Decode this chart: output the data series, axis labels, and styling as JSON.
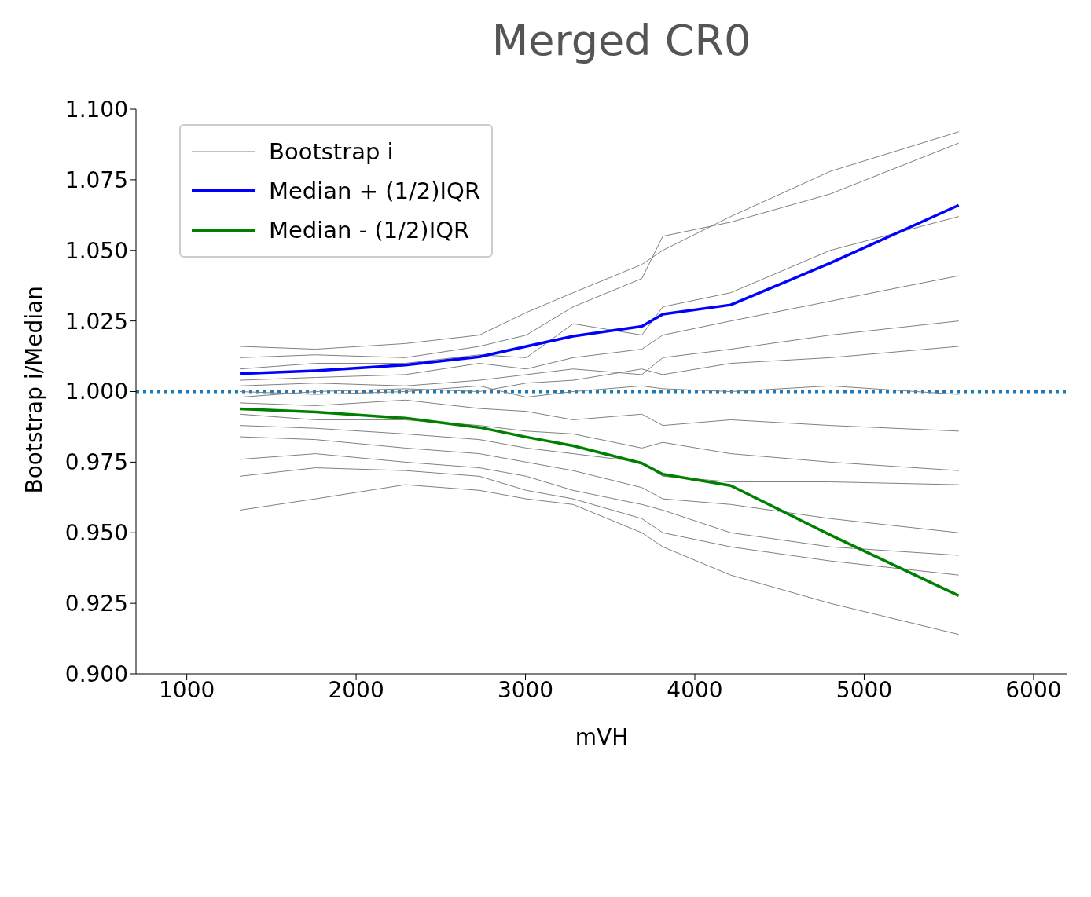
{
  "chart_data": {
    "type": "line",
    "title": "Merged CR0",
    "xlabel": "mVH",
    "ylabel": "Bootstrap i/Median",
    "x": [
      1313,
      1760,
      2290,
      2728,
      3005,
      3281,
      3687,
      3811,
      4212,
      4800,
      5558
    ],
    "xlim": [
      700,
      6200
    ],
    "xticks": [
      1000,
      2000,
      3000,
      4000,
      5000,
      6000
    ],
    "ylim": [
      0.9,
      1.1
    ],
    "yticks": [
      {
        "value": 0.9,
        "label": "0.900"
      },
      {
        "value": 0.925,
        "label": "0.925"
      },
      {
        "value": 0.95,
        "label": "0.950"
      },
      {
        "value": 0.975,
        "label": "0.975"
      },
      {
        "value": 1.0,
        "label": "1.000"
      },
      {
        "value": 1.025,
        "label": "1.025"
      },
      {
        "value": 1.05,
        "label": "1.050"
      },
      {
        "value": 1.075,
        "label": "1.075"
      },
      {
        "value": 1.1,
        "label": "1.100"
      }
    ],
    "legend": "top left",
    "series": [
      {
        "name": "Bootstrap i",
        "color": "#808080",
        "values": [
          1.016,
          1.015,
          1.017,
          1.02,
          1.028,
          1.035,
          1.045,
          1.05,
          1.062,
          1.078,
          1.092
        ]
      },
      {
        "color": "#808080",
        "values": [
          1.012,
          1.013,
          1.012,
          1.016,
          1.02,
          1.03,
          1.04,
          1.055,
          1.06,
          1.07,
          1.088
        ]
      },
      {
        "color": "#808080",
        "values": [
          1.008,
          1.01,
          1.01,
          1.013,
          1.012,
          1.024,
          1.02,
          1.03,
          1.035,
          1.05,
          1.062
        ]
      },
      {
        "color": "#808080",
        "values": [
          1.004,
          1.005,
          1.006,
          1.01,
          1.008,
          1.012,
          1.015,
          1.02,
          1.025,
          1.032,
          1.041
        ]
      },
      {
        "color": "#808080",
        "values": [
          1.002,
          1.003,
          1.002,
          1.004,
          1.006,
          1.008,
          1.006,
          1.012,
          1.015,
          1.02,
          1.025
        ]
      },
      {
        "color": "#808080",
        "values": [
          0.998,
          1.0,
          1.001,
          1.0,
          1.003,
          1.004,
          1.008,
          1.006,
          1.01,
          1.012,
          1.016
        ]
      },
      {
        "color": "#808080",
        "values": [
          1.0,
          0.999,
          1.0,
          1.002,
          0.998,
          1.0,
          1.002,
          1.001,
          1.0,
          1.002,
          0.999
        ]
      },
      {
        "color": "#808080",
        "values": [
          0.996,
          0.995,
          0.997,
          0.994,
          0.993,
          0.99,
          0.992,
          0.988,
          0.99,
          0.988,
          0.986
        ]
      },
      {
        "color": "#808080",
        "values": [
          0.992,
          0.99,
          0.99,
          0.988,
          0.986,
          0.985,
          0.98,
          0.982,
          0.978,
          0.975,
          0.972
        ]
      },
      {
        "color": "#808080",
        "values": [
          0.988,
          0.987,
          0.985,
          0.983,
          0.98,
          0.978,
          0.975,
          0.97,
          0.968,
          0.968,
          0.967
        ]
      },
      {
        "color": "#808080",
        "values": [
          0.984,
          0.983,
          0.98,
          0.978,
          0.975,
          0.972,
          0.966,
          0.962,
          0.96,
          0.955,
          0.95
        ]
      },
      {
        "color": "#808080",
        "values": [
          0.976,
          0.978,
          0.975,
          0.973,
          0.97,
          0.965,
          0.96,
          0.958,
          0.95,
          0.945,
          0.942
        ]
      },
      {
        "color": "#808080",
        "values": [
          0.97,
          0.973,
          0.972,
          0.97,
          0.965,
          0.962,
          0.955,
          0.95,
          0.945,
          0.94,
          0.935
        ]
      },
      {
        "color": "#808080",
        "values": [
          0.958,
          0.962,
          0.967,
          0.965,
          0.962,
          0.96,
          0.95,
          0.945,
          0.935,
          0.925,
          0.914
        ]
      },
      {
        "name": "Median + (1/2)IQR",
        "color": "#0000ff",
        "values": [
          1.0063,
          1.0074,
          1.0094,
          1.0123,
          1.016,
          1.0196,
          1.0231,
          1.0274,
          1.0307,
          1.0455,
          1.066
        ]
      },
      {
        "name": "Median - (1/2)IQR",
        "color": "#008000",
        "values": [
          0.9939,
          0.9928,
          0.9906,
          0.9873,
          0.9839,
          0.9808,
          0.9746,
          0.9707,
          0.9667,
          0.9492,
          0.9277
        ]
      }
    ],
    "ref_lines": [
      {
        "axis": "y",
        "value": 1.0,
        "color": "#1f77b4",
        "line_style": "dotted"
      }
    ]
  }
}
